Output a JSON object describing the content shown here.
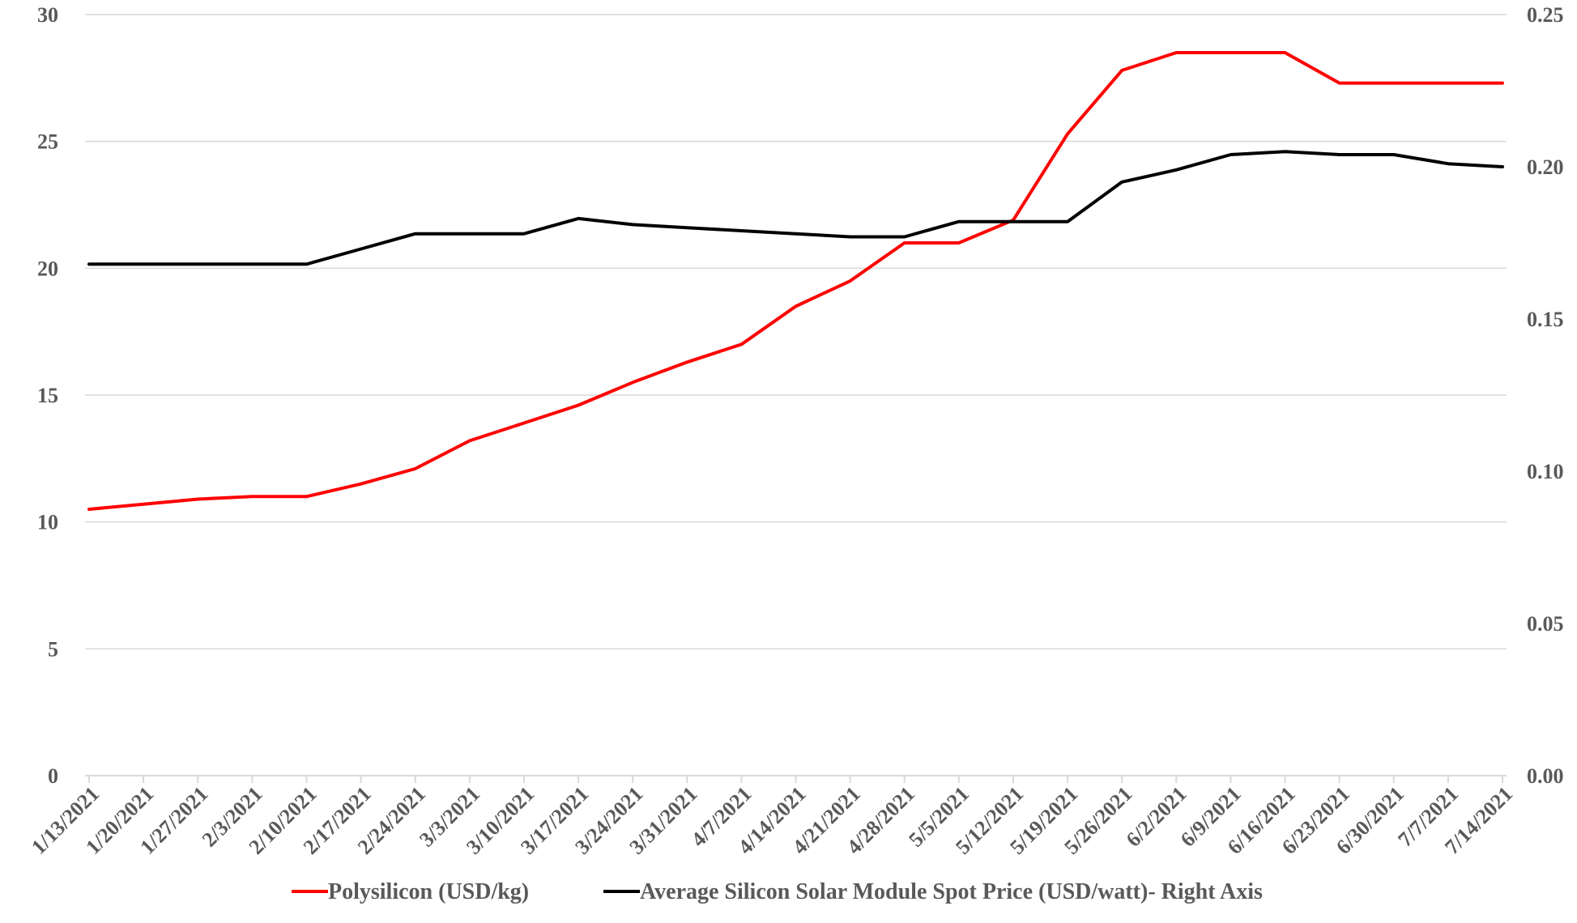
{
  "chart_data": {
    "type": "line",
    "title": "",
    "xlabel": "",
    "ylabel": "",
    "x": [
      "1/13/2021",
      "1/20/2021",
      "1/27/2021",
      "2/3/2021",
      "2/10/2021",
      "2/17/2021",
      "2/24/2021",
      "3/3/2021",
      "3/10/2021",
      "3/17/2021",
      "3/24/2021",
      "3/31/2021",
      "4/7/2021",
      "4/14/2021",
      "4/21/2021",
      "4/28/2021",
      "5/5/2021",
      "5/12/2021",
      "5/19/2021",
      "5/26/2021",
      "6/2/2021",
      "6/9/2021",
      "6/16/2021",
      "6/23/2021",
      "6/30/2021",
      "7/7/2021",
      "7/14/2021"
    ],
    "y_left": {
      "range": [
        0,
        30
      ],
      "ticks": [
        "0",
        "5",
        "10",
        "15",
        "20",
        "25",
        "30"
      ]
    },
    "y_right": {
      "range": [
        0,
        0.25
      ],
      "ticks": [
        "0.00",
        "0.05",
        "0.10",
        "0.15",
        "0.20",
        "0.25"
      ]
    },
    "grid": true,
    "legend_position": "bottom",
    "series": [
      {
        "name": "Polysilicon (USD/kg)",
        "axis": "left",
        "color": "#ff0000",
        "values": [
          10.5,
          10.7,
          10.9,
          11.0,
          11.0,
          11.5,
          12.1,
          13.2,
          13.9,
          14.6,
          15.5,
          16.3,
          17.0,
          18.5,
          19.5,
          21.0,
          21.0,
          21.9,
          25.3,
          27.8,
          28.5,
          28.5,
          28.5,
          27.3,
          27.3,
          27.3,
          27.3
        ]
      },
      {
        "name": "Average Silicon Solar Module Spot Price (USD/watt)- Right Axis",
        "axis": "right",
        "color": "#000000",
        "values": [
          0.168,
          0.168,
          0.168,
          0.168,
          0.168,
          0.173,
          0.178,
          0.178,
          0.178,
          0.183,
          0.181,
          0.18,
          0.179,
          0.178,
          0.177,
          0.177,
          0.182,
          0.182,
          0.182,
          0.195,
          0.199,
          0.204,
          0.205,
          0.204,
          0.204,
          0.201,
          0.2
        ]
      }
    ]
  }
}
